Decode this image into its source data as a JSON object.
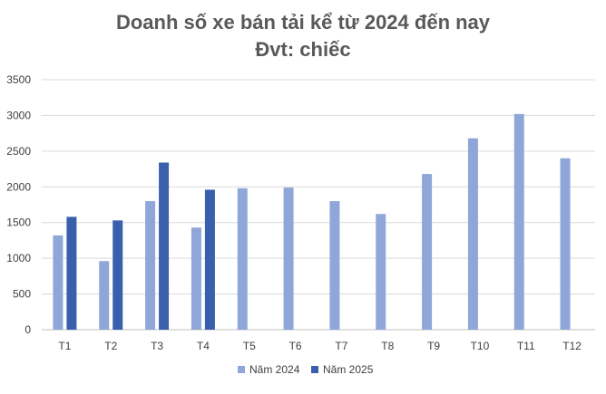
{
  "chart_data": {
    "type": "bar",
    "title": "Doanh số xe bán tải kể từ 2024 đến nay",
    "subtitle": "Đvt: chiếc",
    "categories": [
      "T1",
      "T2",
      "T3",
      "T4",
      "T5",
      "T6",
      "T7",
      "T8",
      "T9",
      "T10",
      "T11",
      "T12"
    ],
    "series": [
      {
        "name": "Năm 2024",
        "color": "#8FA7D8",
        "values": [
          1320,
          960,
          1800,
          1430,
          1980,
          1990,
          1800,
          1620,
          2180,
          2680,
          3020,
          2400
        ]
      },
      {
        "name": "Năm 2025",
        "color": "#3A5FAD",
        "values": [
          1580,
          1530,
          2340,
          1960,
          null,
          null,
          null,
          null,
          null,
          null,
          null,
          null
        ]
      }
    ],
    "ylim": [
      0,
      3500
    ],
    "yticks": [
      0,
      500,
      1000,
      1500,
      2000,
      2500,
      3000,
      3500
    ],
    "ytick_labels": [
      "0",
      "500",
      "1000",
      "1500",
      "2000",
      "2500",
      "3000",
      "3500"
    ],
    "grid": true,
    "legend_position": "bottom"
  }
}
